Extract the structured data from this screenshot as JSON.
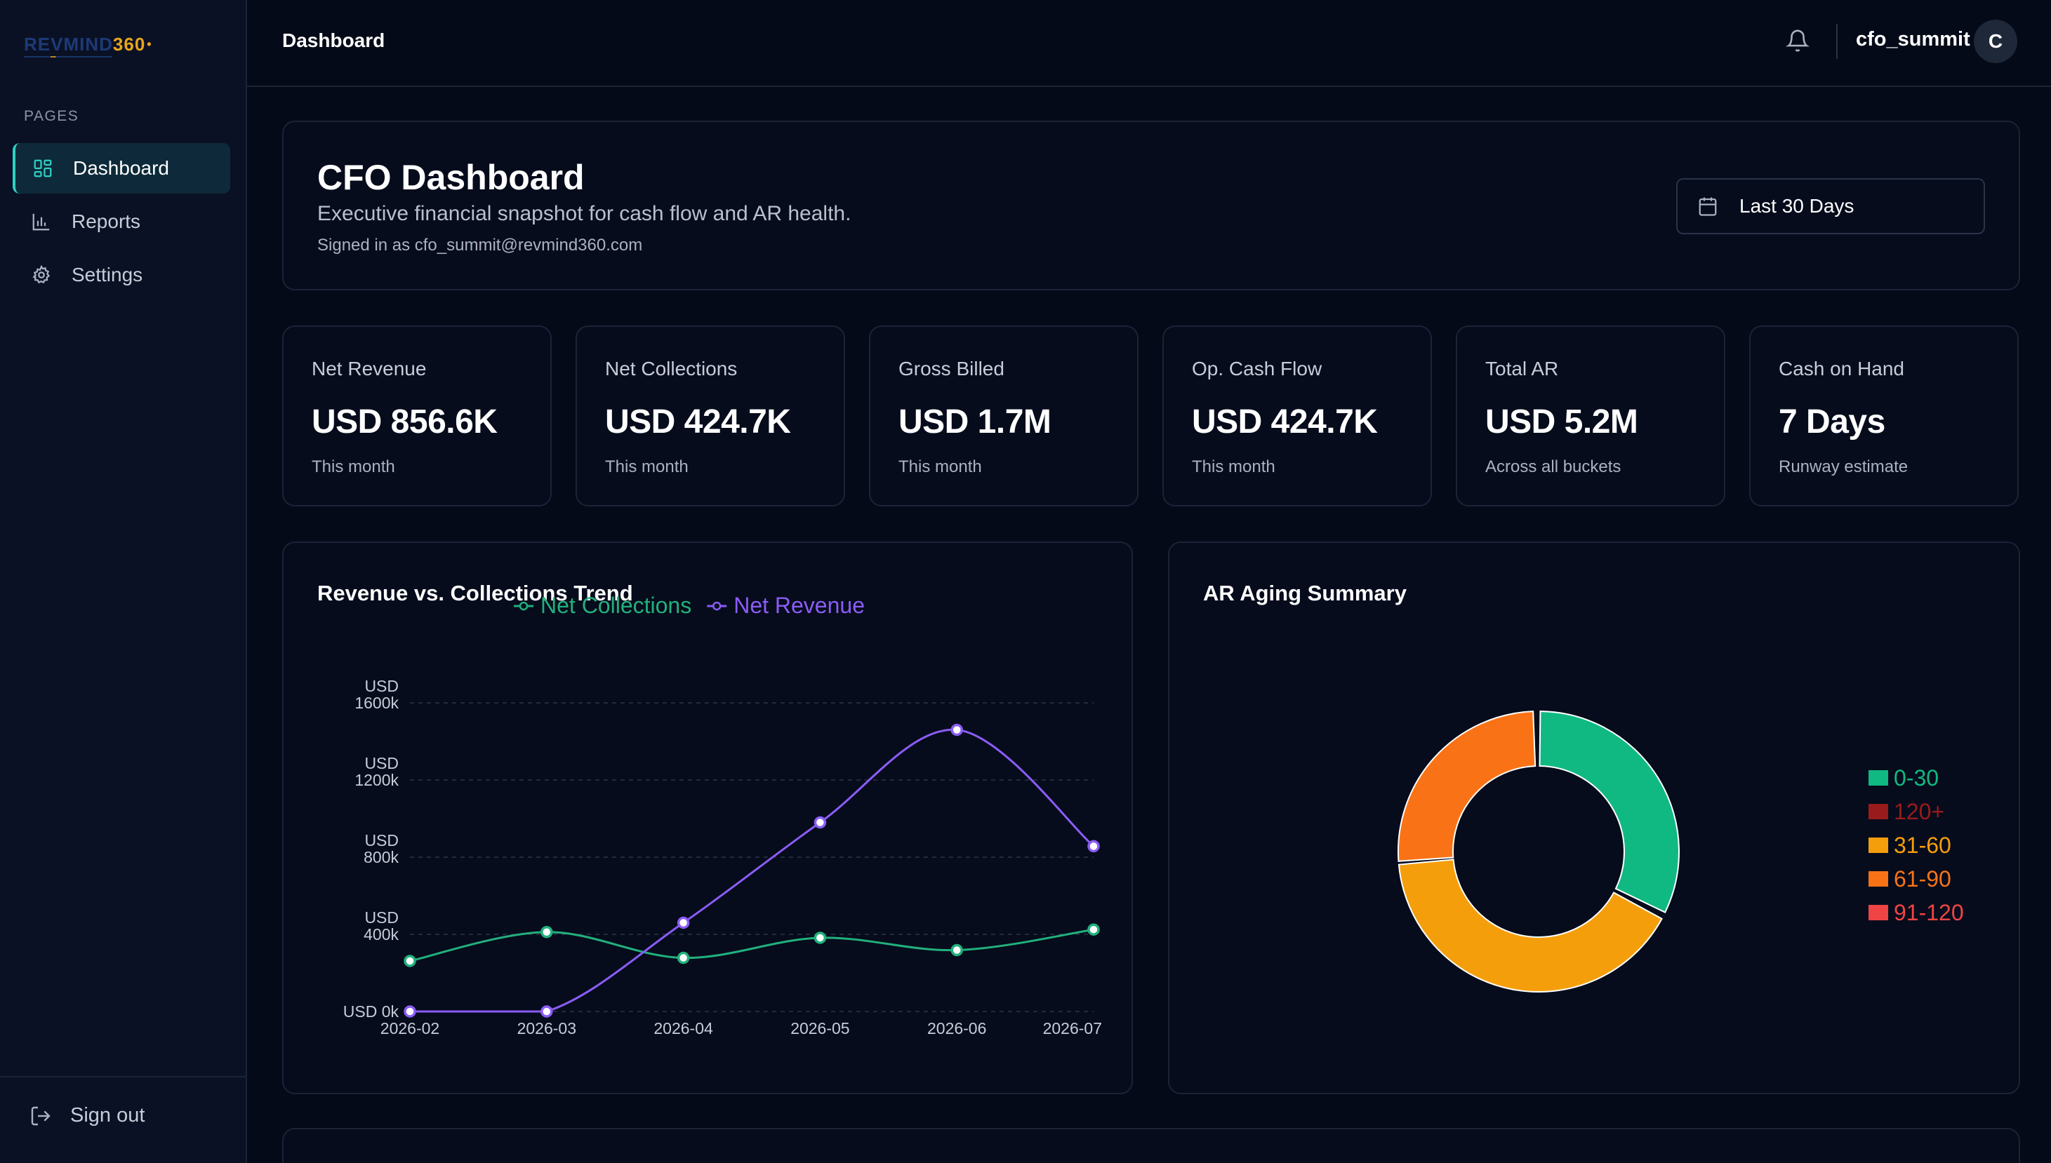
{
  "brand": {
    "rev": "REVMIND",
    "num": "360",
    "dot": "•"
  },
  "sidebar": {
    "section_label": "PAGES",
    "items": [
      {
        "label": "Dashboard",
        "icon": "dashboard-grid-icon",
        "active": true
      },
      {
        "label": "Reports",
        "icon": "bar-chart-icon",
        "active": false
      },
      {
        "label": "Settings",
        "icon": "gear-icon",
        "active": false
      }
    ],
    "signout_label": "Sign out"
  },
  "header": {
    "title": "Dashboard",
    "username": "cfo_summit",
    "avatar_initial": "C"
  },
  "hero": {
    "title": "CFO Dashboard",
    "subtitle": "Executive financial snapshot for cash flow and AR health.",
    "signed_in": "Signed in as cfo_summit@revmind360.com",
    "date_range": "Last 30 Days"
  },
  "kpis": [
    {
      "label": "Net Revenue",
      "value": "USD 856.6K",
      "note": "This month"
    },
    {
      "label": "Net Collections",
      "value": "USD 424.7K",
      "note": "This month"
    },
    {
      "label": "Gross Billed",
      "value": "USD 1.7M",
      "note": "This month"
    },
    {
      "label": "Op. Cash Flow",
      "value": "USD 424.7K",
      "note": "This month"
    },
    {
      "label": "Total AR",
      "value": "USD 5.2M",
      "note": "Across all buckets"
    },
    {
      "label": "Cash on Hand",
      "value": "7 Days",
      "note": "Runway estimate"
    }
  ],
  "chart_data": [
    {
      "type": "line",
      "title": "Revenue vs. Collections Trend",
      "x": [
        "2026-02",
        "2026-03",
        "2026-04",
        "2026-05",
        "2026-06",
        "2026-07"
      ],
      "y_ticks": [
        {
          "value": 0,
          "label_lines": [
            "USD 0k"
          ]
        },
        {
          "value": 400,
          "label_lines": [
            "USD",
            "400k"
          ]
        },
        {
          "value": 800,
          "label_lines": [
            "USD",
            "800k"
          ]
        },
        {
          "value": 1200,
          "label_lines": [
            "USD",
            "1200k"
          ]
        },
        {
          "value": 1600,
          "label_lines": [
            "USD",
            "1600k"
          ]
        }
      ],
      "ylim": [
        0,
        1600
      ],
      "legend_position": "top-center",
      "grid": true,
      "series": [
        {
          "name": "Net Collections",
          "color": "#22b07d",
          "values": [
            262,
            412,
            278,
            382,
            318,
            424.7
          ]
        },
        {
          "name": "Net Revenue",
          "color": "#8b5cf6",
          "values": [
            0,
            0,
            460,
            980,
            1460,
            856.6
          ]
        }
      ]
    },
    {
      "type": "pie",
      "title": "AR Aging Summary",
      "legend_position": "right",
      "slices": [
        {
          "label": "0-30",
          "value": 30,
          "color": "#10b981"
        },
        {
          "label": "120+",
          "value": 0.4,
          "color": "#991b1b"
        },
        {
          "label": "31-60",
          "value": 38,
          "color": "#f59e0b"
        },
        {
          "label": "61-90",
          "value": 24,
          "color": "#f97316"
        },
        {
          "label": "91-120",
          "value": 0.4,
          "color": "#ef4444"
        }
      ]
    }
  ]
}
